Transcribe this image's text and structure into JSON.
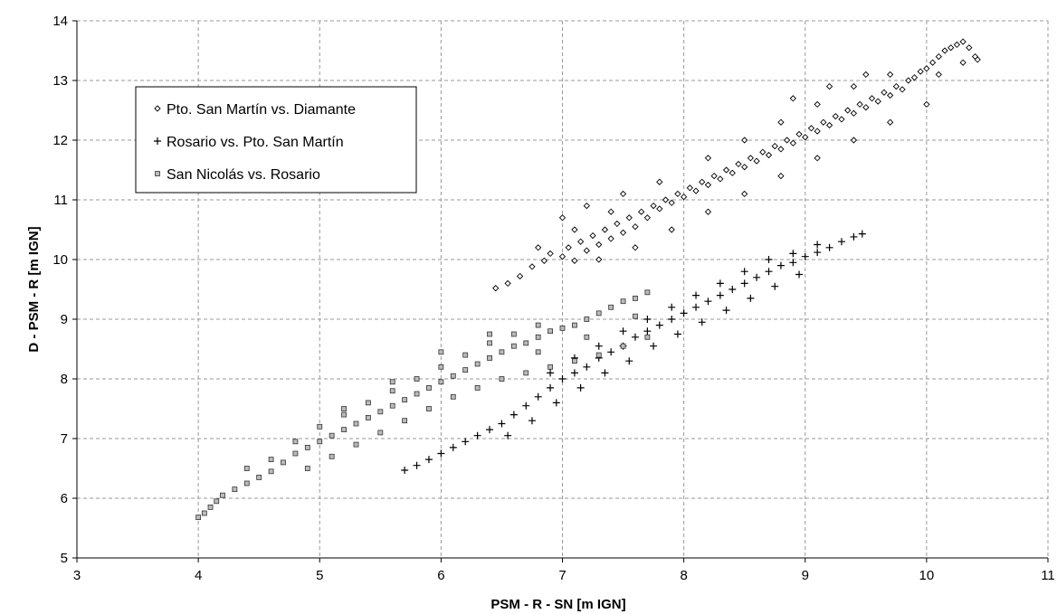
{
  "chart_data": {
    "type": "scatter",
    "title": "",
    "xlabel": "PSM - R - SN [m IGN]",
    "ylabel": "D - PSM - R [m IGN]",
    "xlim": [
      3,
      11
    ],
    "ylim": [
      5,
      14
    ],
    "x_ticks": [
      "3",
      "4",
      "5",
      "6",
      "7",
      "8",
      "9",
      "10",
      "11"
    ],
    "y_ticks": [
      "5",
      "6",
      "7",
      "8",
      "9",
      "10",
      "11",
      "12",
      "13",
      "14"
    ],
    "grid": true,
    "legend_placement": "top-left",
    "series": [
      {
        "name": "Pto. San Martín vs. Diamante",
        "marker": "diamond-open",
        "color": "#000000",
        "points": [
          [
            6.45,
            9.52
          ],
          [
            6.55,
            9.6
          ],
          [
            6.65,
            9.72
          ],
          [
            6.75,
            9.88
          ],
          [
            6.85,
            9.98
          ],
          [
            6.9,
            10.1
          ],
          [
            7.0,
            10.05
          ],
          [
            7.05,
            10.2
          ],
          [
            7.1,
            9.98
          ],
          [
            7.15,
            10.3
          ],
          [
            7.2,
            10.15
          ],
          [
            7.25,
            10.4
          ],
          [
            7.3,
            10.25
          ],
          [
            7.35,
            10.5
          ],
          [
            7.4,
            10.35
          ],
          [
            7.45,
            10.6
          ],
          [
            7.5,
            10.45
          ],
          [
            7.55,
            10.7
          ],
          [
            7.6,
            10.55
          ],
          [
            7.65,
            10.8
          ],
          [
            7.7,
            10.7
          ],
          [
            7.75,
            10.9
          ],
          [
            7.8,
            10.85
          ],
          [
            7.85,
            11.0
          ],
          [
            7.9,
            10.95
          ],
          [
            7.95,
            11.1
          ],
          [
            8.0,
            11.05
          ],
          [
            8.05,
            11.2
          ],
          [
            8.1,
            11.15
          ],
          [
            8.15,
            11.3
          ],
          [
            8.2,
            11.25
          ],
          [
            8.25,
            11.4
          ],
          [
            8.3,
            11.35
          ],
          [
            8.35,
            11.5
          ],
          [
            8.4,
            11.45
          ],
          [
            8.45,
            11.6
          ],
          [
            8.5,
            11.55
          ],
          [
            8.55,
            11.7
          ],
          [
            8.6,
            11.65
          ],
          [
            8.65,
            11.8
          ],
          [
            8.7,
            11.75
          ],
          [
            8.75,
            11.9
          ],
          [
            8.8,
            11.85
          ],
          [
            8.85,
            12.0
          ],
          [
            8.9,
            11.95
          ],
          [
            8.95,
            12.1
          ],
          [
            9.0,
            12.05
          ],
          [
            9.05,
            12.2
          ],
          [
            9.1,
            12.15
          ],
          [
            9.15,
            12.3
          ],
          [
            9.2,
            12.25
          ],
          [
            9.25,
            12.4
          ],
          [
            9.3,
            12.35
          ],
          [
            9.35,
            12.5
          ],
          [
            9.4,
            12.45
          ],
          [
            9.45,
            12.6
          ],
          [
            9.5,
            12.55
          ],
          [
            9.55,
            12.7
          ],
          [
            9.6,
            12.65
          ],
          [
            9.65,
            12.8
          ],
          [
            9.7,
            12.75
          ],
          [
            9.75,
            12.9
          ],
          [
            9.8,
            12.85
          ],
          [
            9.85,
            13.0
          ],
          [
            9.9,
            13.05
          ],
          [
            9.95,
            13.15
          ],
          [
            10.0,
            13.2
          ],
          [
            10.05,
            13.3
          ],
          [
            10.1,
            13.4
          ],
          [
            10.15,
            13.5
          ],
          [
            10.2,
            13.55
          ],
          [
            10.25,
            13.6
          ],
          [
            10.3,
            13.65
          ],
          [
            10.35,
            13.55
          ],
          [
            10.4,
            13.4
          ],
          [
            10.42,
            13.35
          ],
          [
            10.3,
            13.3
          ],
          [
            10.1,
            13.1
          ],
          [
            7.0,
            10.7
          ],
          [
            7.2,
            10.9
          ],
          [
            7.5,
            11.1
          ],
          [
            7.8,
            11.3
          ],
          [
            8.2,
            11.7
          ],
          [
            8.5,
            12.0
          ],
          [
            8.8,
            12.3
          ],
          [
            9.1,
            12.6
          ],
          [
            9.4,
            12.9
          ],
          [
            9.7,
            13.1
          ],
          [
            7.3,
            10.0
          ],
          [
            7.6,
            10.2
          ],
          [
            7.9,
            10.5
          ],
          [
            8.2,
            10.8
          ],
          [
            8.5,
            11.1
          ],
          [
            8.8,
            11.4
          ],
          [
            9.1,
            11.7
          ],
          [
            9.4,
            12.0
          ],
          [
            9.7,
            12.3
          ],
          [
            10.0,
            12.6
          ],
          [
            9.2,
            12.9
          ],
          [
            9.5,
            13.1
          ],
          [
            8.9,
            12.7
          ],
          [
            6.8,
            10.2
          ],
          [
            7.1,
            10.5
          ],
          [
            7.4,
            10.8
          ]
        ]
      },
      {
        "name": "Rosario vs. Pto. San Martín",
        "marker": "plus",
        "color": "#000000",
        "points": [
          [
            5.7,
            6.47
          ],
          [
            5.8,
            6.55
          ],
          [
            5.9,
            6.65
          ],
          [
            6.0,
            6.75
          ],
          [
            6.1,
            6.85
          ],
          [
            6.2,
            6.95
          ],
          [
            6.3,
            7.05
          ],
          [
            6.4,
            7.15
          ],
          [
            6.5,
            7.25
          ],
          [
            6.6,
            7.4
          ],
          [
            6.7,
            7.55
          ],
          [
            6.8,
            7.7
          ],
          [
            6.9,
            7.85
          ],
          [
            7.0,
            8.0
          ],
          [
            7.1,
            8.1
          ],
          [
            7.2,
            8.2
          ],
          [
            7.3,
            8.35
          ],
          [
            7.4,
            8.45
          ],
          [
            7.5,
            8.55
          ],
          [
            7.6,
            8.7
          ],
          [
            7.7,
            8.8
          ],
          [
            7.8,
            8.9
          ],
          [
            7.9,
            9.0
          ],
          [
            8.0,
            9.1
          ],
          [
            8.1,
            9.2
          ],
          [
            8.2,
            9.3
          ],
          [
            8.3,
            9.4
          ],
          [
            8.4,
            9.5
          ],
          [
            8.5,
            9.6
          ],
          [
            8.6,
            9.7
          ],
          [
            8.7,
            9.8
          ],
          [
            8.8,
            9.9
          ],
          [
            8.9,
            9.95
          ],
          [
            9.0,
            10.05
          ],
          [
            9.1,
            10.12
          ],
          [
            9.2,
            10.2
          ],
          [
            9.3,
            10.3
          ],
          [
            9.4,
            10.38
          ],
          [
            9.47,
            10.43
          ],
          [
            6.55,
            7.05
          ],
          [
            6.75,
            7.3
          ],
          [
            6.95,
            7.6
          ],
          [
            7.15,
            7.85
          ],
          [
            7.35,
            8.1
          ],
          [
            7.55,
            8.3
          ],
          [
            7.75,
            8.55
          ],
          [
            7.95,
            8.75
          ],
          [
            8.15,
            8.95
          ],
          [
            8.35,
            9.15
          ],
          [
            8.55,
            9.35
          ],
          [
            8.75,
            9.55
          ],
          [
            8.95,
            9.75
          ],
          [
            6.9,
            8.1
          ],
          [
            7.1,
            8.35
          ],
          [
            7.3,
            8.55
          ],
          [
            7.5,
            8.8
          ],
          [
            7.7,
            9.0
          ],
          [
            7.9,
            9.2
          ],
          [
            8.1,
            9.4
          ],
          [
            8.3,
            9.6
          ],
          [
            8.5,
            9.8
          ],
          [
            8.7,
            10.0
          ],
          [
            8.9,
            10.1
          ],
          [
            9.1,
            10.25
          ]
        ]
      },
      {
        "name": "San Nicolás vs. Rosario",
        "marker": "square-open",
        "color": "#000000",
        "points": [
          [
            4.0,
            5.68
          ],
          [
            4.05,
            5.75
          ],
          [
            4.1,
            5.85
          ],
          [
            4.15,
            5.95
          ],
          [
            4.2,
            6.05
          ],
          [
            4.3,
            6.15
          ],
          [
            4.4,
            6.25
          ],
          [
            4.5,
            6.35
          ],
          [
            4.6,
            6.45
          ],
          [
            4.7,
            6.6
          ],
          [
            4.8,
            6.75
          ],
          [
            4.9,
            6.85
          ],
          [
            5.0,
            6.95
          ],
          [
            5.1,
            7.05
          ],
          [
            5.2,
            7.15
          ],
          [
            5.3,
            7.25
          ],
          [
            5.4,
            7.35
          ],
          [
            5.5,
            7.45
          ],
          [
            5.6,
            7.55
          ],
          [
            5.7,
            7.65
          ],
          [
            5.8,
            7.75
          ],
          [
            5.9,
            7.85
          ],
          [
            6.0,
            7.95
          ],
          [
            6.1,
            8.05
          ],
          [
            6.2,
            8.15
          ],
          [
            6.3,
            8.25
          ],
          [
            6.4,
            8.35
          ],
          [
            6.5,
            8.45
          ],
          [
            6.6,
            8.55
          ],
          [
            6.7,
            8.6
          ],
          [
            6.8,
            8.7
          ],
          [
            6.9,
            8.8
          ],
          [
            7.0,
            8.85
          ],
          [
            7.1,
            8.9
          ],
          [
            7.2,
            9.0
          ],
          [
            7.3,
            9.1
          ],
          [
            7.4,
            9.2
          ],
          [
            7.5,
            9.3
          ],
          [
            7.6,
            9.35
          ],
          [
            7.7,
            9.45
          ],
          [
            4.8,
            6.95
          ],
          [
            5.0,
            7.2
          ],
          [
            5.2,
            7.4
          ],
          [
            5.4,
            7.6
          ],
          [
            5.6,
            7.8
          ],
          [
            5.8,
            8.0
          ],
          [
            6.0,
            8.2
          ],
          [
            6.2,
            8.4
          ],
          [
            6.4,
            8.6
          ],
          [
            6.6,
            8.75
          ],
          [
            6.8,
            8.9
          ],
          [
            4.9,
            6.5
          ],
          [
            5.1,
            6.7
          ],
          [
            5.3,
            6.9
          ],
          [
            5.5,
            7.1
          ],
          [
            5.7,
            7.3
          ],
          [
            5.9,
            7.5
          ],
          [
            6.1,
            7.7
          ],
          [
            6.3,
            7.85
          ],
          [
            6.5,
            8.0
          ],
          [
            6.7,
            8.1
          ],
          [
            6.9,
            8.2
          ],
          [
            7.1,
            8.3
          ],
          [
            7.3,
            8.4
          ],
          [
            7.5,
            8.55
          ],
          [
            7.7,
            8.7
          ],
          [
            4.4,
            6.5
          ],
          [
            4.6,
            6.65
          ],
          [
            5.2,
            7.5
          ],
          [
            5.6,
            7.95
          ],
          [
            6.0,
            8.45
          ],
          [
            6.4,
            8.75
          ],
          [
            6.8,
            8.45
          ],
          [
            7.2,
            8.7
          ],
          [
            7.6,
            9.05
          ]
        ]
      }
    ]
  }
}
